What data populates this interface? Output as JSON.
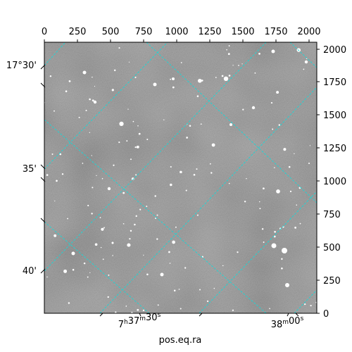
{
  "figure": {
    "x_axis_label": "pos.eq.ra",
    "top_ticks": [
      "0",
      "250",
      "500",
      "750",
      "1000",
      "1250",
      "1500",
      "1750",
      "2000"
    ],
    "right_ticks": [
      "0",
      "250",
      "500",
      "750",
      "1000",
      "1250",
      "1500",
      "1750",
      "2000"
    ],
    "ra_ticks": [
      {
        "h": "7",
        "m": "37",
        "s": "30",
        "display": "7h37m30s"
      },
      {
        "m": "38",
        "s": "00",
        "display": "38m00s"
      }
    ],
    "dec_ticks": [
      "17°30'",
      "35'",
      "40'"
    ],
    "grid_color": "#22d3d3",
    "image_style": "grayscale sky image with star field"
  }
}
